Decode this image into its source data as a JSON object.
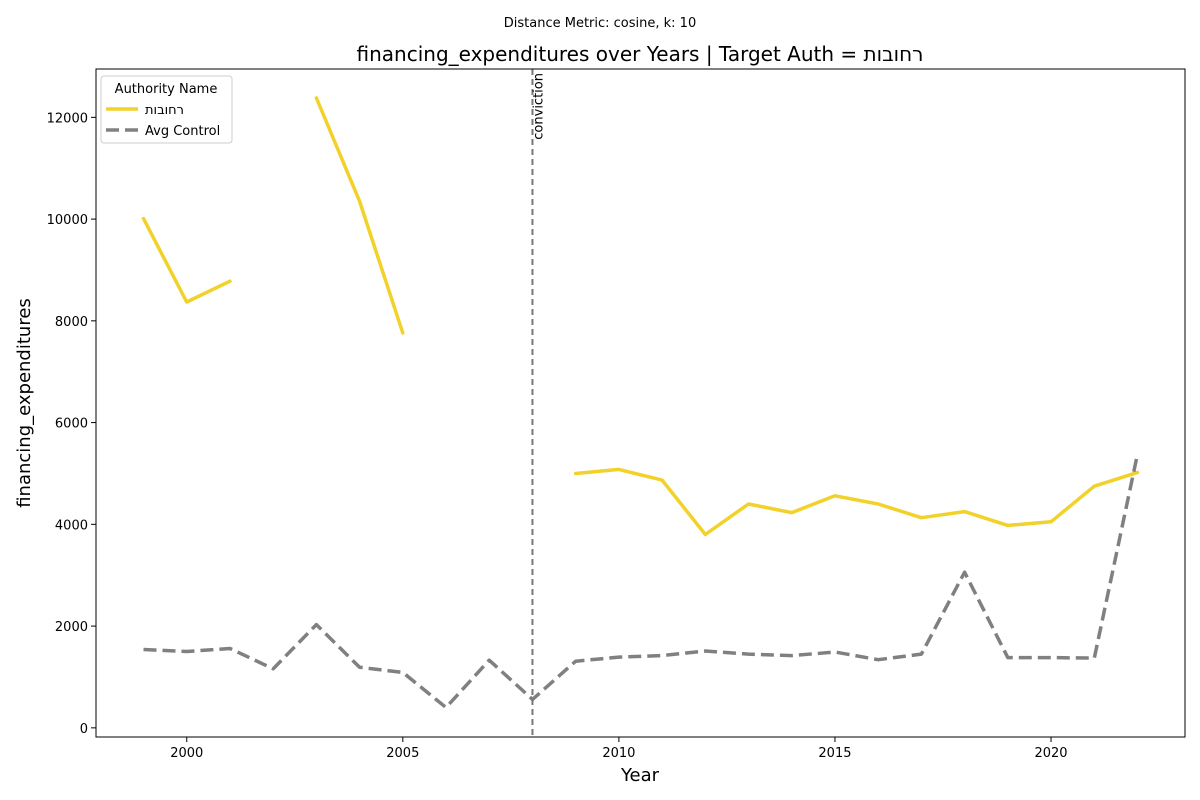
{
  "figure": {
    "suptitle": "Distance Metric: cosine, k: 10"
  },
  "chart_data": {
    "type": "line",
    "title": "financing_expenditures over Years | Target Auth = רחובות",
    "xlabel": "Year",
    "ylabel": "financing_expenditures",
    "xlim": [
      1997.9,
      2023.1
    ],
    "ylim": [
      -180,
      12950
    ],
    "x_ticks": [
      2000,
      2005,
      2010,
      2015,
      2020
    ],
    "y_ticks": [
      0,
      2000,
      4000,
      6000,
      8000,
      10000,
      12000
    ],
    "grid": false,
    "legend": {
      "title": "Authority Name",
      "placement": "top-left"
    },
    "annotations": [
      {
        "type": "vline",
        "x": 2008,
        "label": "conviction",
        "color": "#777777",
        "dash": "dashed"
      }
    ],
    "series": [
      {
        "name": "רחובות",
        "color": "#f2d22a",
        "style": "solid",
        "points": [
          [
            1999,
            10010
          ],
          [
            2000,
            8370
          ],
          [
            2001,
            8780
          ],
          [
            2002,
            null
          ],
          [
            2003,
            12380
          ],
          [
            2004,
            10350
          ],
          [
            2005,
            7760
          ],
          [
            2006,
            null
          ],
          [
            2007,
            null
          ],
          [
            2008,
            null
          ],
          [
            2009,
            5000
          ],
          [
            2010,
            5080
          ],
          [
            2011,
            4870
          ],
          [
            2012,
            3800
          ],
          [
            2013,
            4400
          ],
          [
            2014,
            4230
          ],
          [
            2015,
            4560
          ],
          [
            2016,
            4400
          ],
          [
            2017,
            4130
          ],
          [
            2018,
            4250
          ],
          [
            2019,
            3980
          ],
          [
            2020,
            4050
          ],
          [
            2021,
            4750
          ],
          [
            2022,
            5020
          ]
        ]
      },
      {
        "name": "Avg Control",
        "color": "#808080",
        "style": "dashed",
        "points": [
          [
            1999,
            1540
          ],
          [
            2000,
            1500
          ],
          [
            2001,
            1560
          ],
          [
            2002,
            1160
          ],
          [
            2003,
            2030
          ],
          [
            2004,
            1190
          ],
          [
            2005,
            1090
          ],
          [
            2006,
            400
          ],
          [
            2007,
            1330
          ],
          [
            2008,
            560
          ],
          [
            2009,
            1310
          ],
          [
            2010,
            1390
          ],
          [
            2011,
            1420
          ],
          [
            2012,
            1510
          ],
          [
            2013,
            1450
          ],
          [
            2014,
            1420
          ],
          [
            2015,
            1490
          ],
          [
            2016,
            1340
          ],
          [
            2017,
            1450
          ],
          [
            2018,
            3060
          ],
          [
            2019,
            1380
          ],
          [
            2020,
            1380
          ],
          [
            2021,
            1370
          ],
          [
            2022,
            5380
          ]
        ]
      }
    ]
  }
}
